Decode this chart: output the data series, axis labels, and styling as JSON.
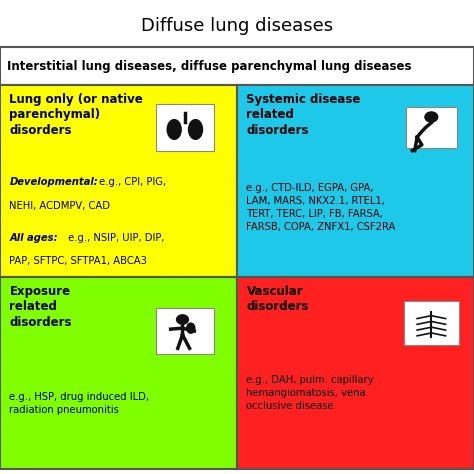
{
  "title": "Diffuse lung diseases",
  "subtitle": "Interstitial lung diseases, diffuse parenchymal lung diseases",
  "cells": [
    {
      "id": "top_left",
      "bg_color": "#FFFF00",
      "header": "Lung only (or native\nparenchymal)\ndisorders",
      "dev_italic": "Developmental:",
      "dev_rest": " e.g., CPI, PIG,\nNEHI, ACDMPV, CAD",
      "ages_italic": "All ages:",
      "ages_rest": " e.g., NSIP, UIP, DIP,\nPAP, SFTPC, SFTPA1, ABCA3",
      "text_color": "#000000"
    },
    {
      "id": "top_right",
      "bg_color": "#1EC8E8",
      "header": "Systemic disease\nrelated\ndisorders",
      "body": "e.g., CTD-ILD, EGPA, GPA,\nLAM, MARS, NKX2.1, RTEL1,\nTERT, TERC, LIP, FB, FARSA,\nFARSB, COPA, ZNFX1, CSF2RA",
      "text_color": "#000000"
    },
    {
      "id": "bottom_left",
      "bg_color": "#80FF00",
      "header": "Exposure\nrelated\ndisorders",
      "body": "e.g., HSP, drug induced ILD,\nradiation pneumonitis",
      "text_color": "#000000"
    },
    {
      "id": "bottom_right",
      "bg_color": "#FF2020",
      "header": "Vascular\ndisorders",
      "body": "e.g., DAH, pulm. capillary\nhemangiomatosis, vena\nocclusive disease",
      "text_color": "#000000"
    }
  ],
  "title_fontsize": 13,
  "subtitle_fontsize": 8.5,
  "header_fontsize": 8.5,
  "body_fontsize": 7.2,
  "border_color": "#555555",
  "border_lw": 1.5,
  "fig_bg": "#FFFFFF"
}
